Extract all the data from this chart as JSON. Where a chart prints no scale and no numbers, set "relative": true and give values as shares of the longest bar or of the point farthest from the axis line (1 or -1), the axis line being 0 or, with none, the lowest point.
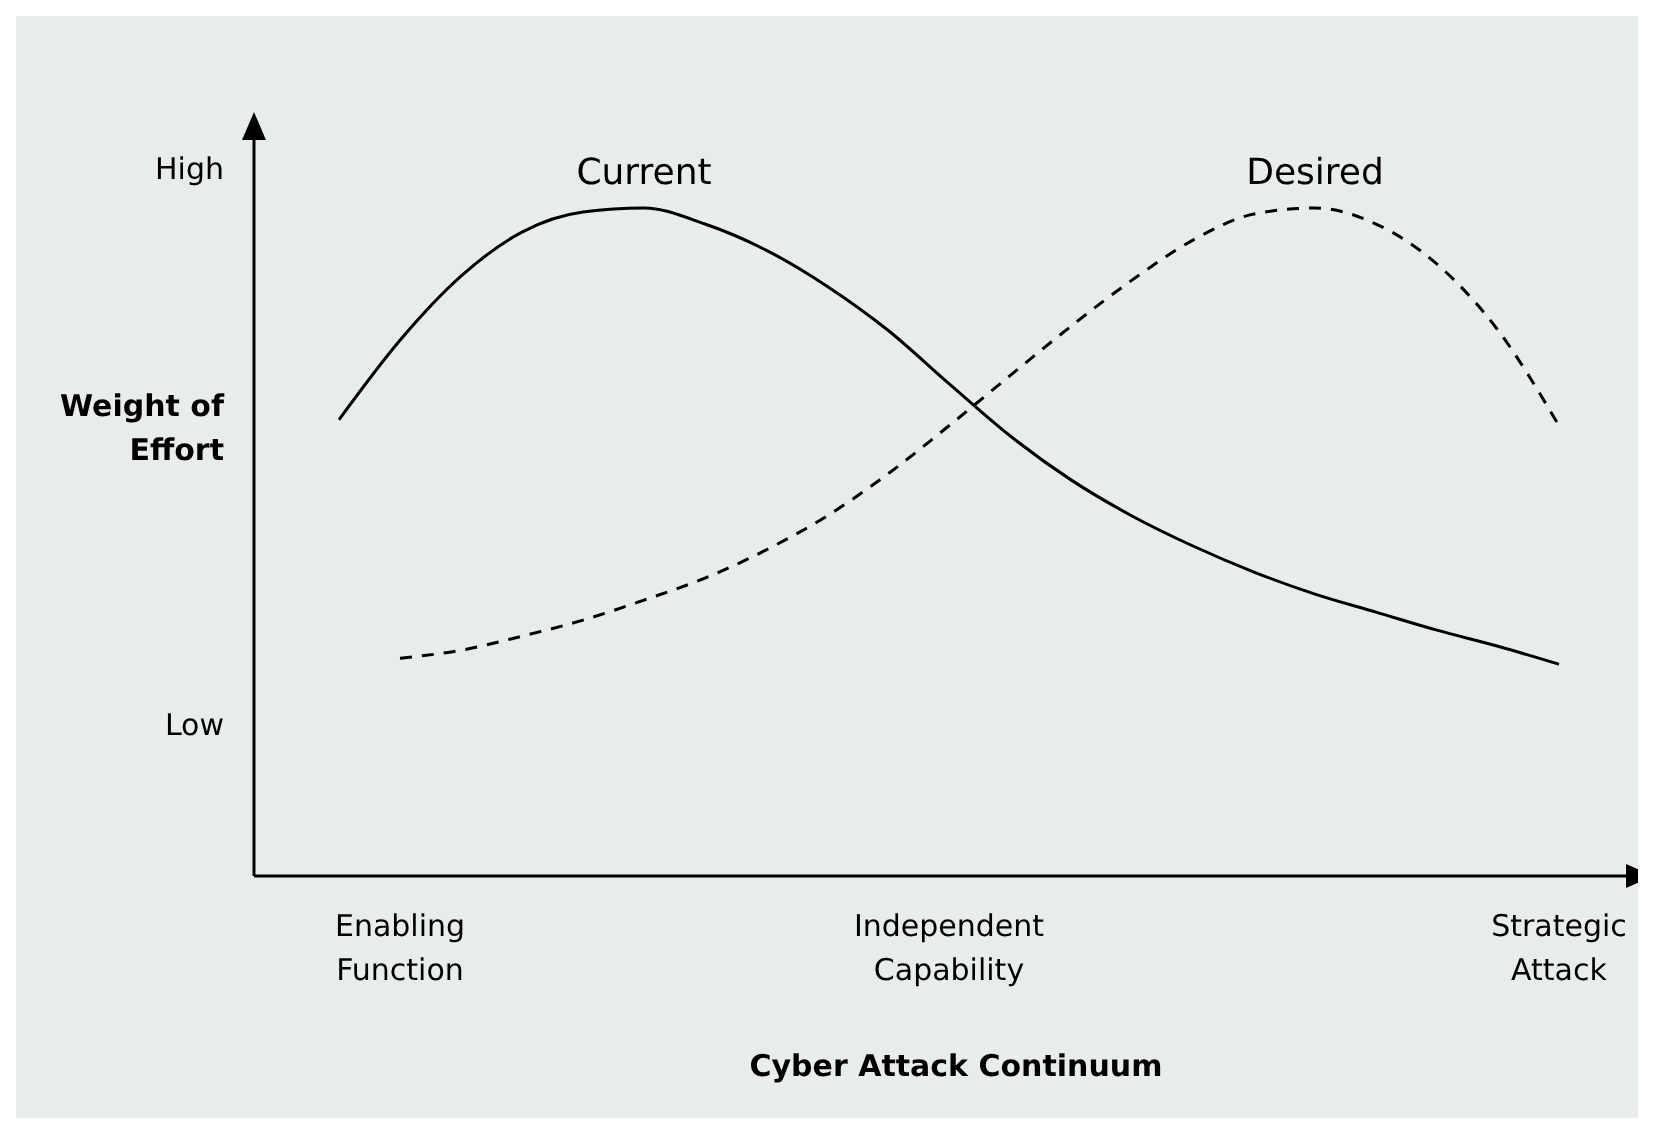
{
  "chart_data": {
    "type": "line",
    "relative": true,
    "xlabel": "Cyber Attack Continuum",
    "ylabel": "Weight of Effort",
    "annotations": [
      "High",
      "Low"
    ],
    "categories": [
      null,
      "Enabling Function",
      null,
      null,
      null,
      null,
      null,
      null,
      null,
      null,
      "Independent Capability",
      null,
      null,
      null,
      null,
      null,
      null,
      null,
      null,
      null,
      "Strategic Attack"
    ],
    "series": [
      {
        "name": "Current",
        "color": "#000000",
        "line_style": "solid",
        "values": [
          0.683,
          0.802,
          0.898,
          0.964,
          0.994,
          1.0,
          0.976,
          0.937,
          0.883,
          0.817,
          0.737,
          0.659,
          0.593,
          0.539,
          0.494,
          0.455,
          0.422,
          0.395,
          0.368,
          0.344,
          0.317
        ]
      },
      {
        "name": "Desired",
        "color": "#000000",
        "line_style": "dashed",
        "values": [
          null,
          0.326,
          0.338,
          0.359,
          0.383,
          0.413,
          0.446,
          0.488,
          0.539,
          0.602,
          0.674,
          0.749,
          0.823,
          0.892,
          0.952,
          0.991,
          1.0,
          0.976,
          0.916,
          0.817,
          0.674
        ]
      }
    ]
  }
}
